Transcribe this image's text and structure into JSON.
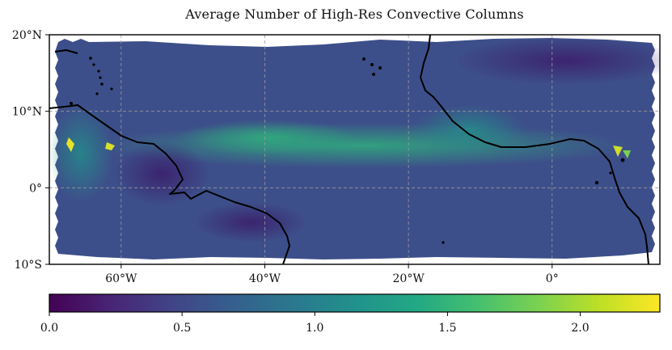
{
  "title": "Average Number of High-Res Convective Columns",
  "map": {
    "extent": {
      "lon": [
        -70,
        15
      ],
      "lat": [
        -10,
        20
      ]
    },
    "lat_ticks": [
      {
        "value": 20,
        "label": "20°N"
      },
      {
        "value": 10,
        "label": "10°N"
      },
      {
        "value": 0,
        "label": "0°"
      },
      {
        "value": -10,
        "label": "10°S"
      }
    ],
    "lon_ticks": [
      {
        "value": -60,
        "label": "60°W"
      },
      {
        "value": -40,
        "label": "40°W"
      },
      {
        "value": -20,
        "label": "20°W"
      },
      {
        "value": 0,
        "label": "0°"
      }
    ],
    "gridlines": true,
    "colormap": "viridis"
  },
  "colorbar": {
    "range": [
      0.0,
      2.3
    ],
    "ticks": [
      {
        "value": 0.0,
        "label": "0.0"
      },
      {
        "value": 0.5,
        "label": "0.5"
      },
      {
        "value": 1.0,
        "label": "1.0"
      },
      {
        "value": 1.5,
        "label": "1.5"
      },
      {
        "value": 2.0,
        "label": "2.0"
      }
    ]
  }
}
